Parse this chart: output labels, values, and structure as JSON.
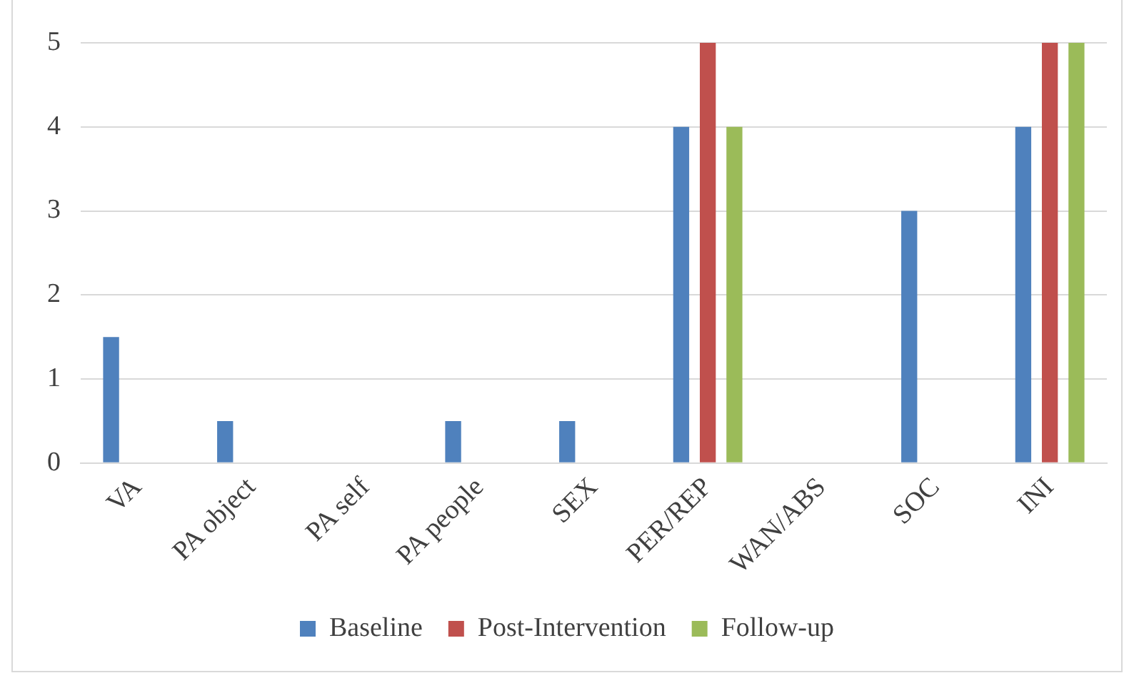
{
  "chart_data": {
    "type": "bar",
    "categories": [
      "VA",
      "PA object",
      "PA self",
      "PA people",
      "SEX",
      "PER/REP",
      "WAN/ABS",
      "SOC",
      "INI"
    ],
    "series": [
      {
        "name": "Baseline",
        "color": "#4f81bd",
        "values": [
          1.5,
          0.5,
          0,
          0.5,
          0.5,
          4,
          0,
          3,
          4
        ]
      },
      {
        "name": "Post-Intervention",
        "color": "#c0504d",
        "values": [
          0,
          0,
          0,
          0,
          0,
          5,
          0,
          0,
          5
        ]
      },
      {
        "name": "Follow-up",
        "color": "#9bbb59",
        "values": [
          0,
          0,
          0,
          0,
          0,
          4,
          0,
          0,
          5
        ]
      }
    ],
    "ylim": [
      0,
      5
    ],
    "yticks": [
      0,
      1,
      2,
      3,
      4,
      5
    ],
    "grid": "y",
    "legend": "bottom"
  }
}
